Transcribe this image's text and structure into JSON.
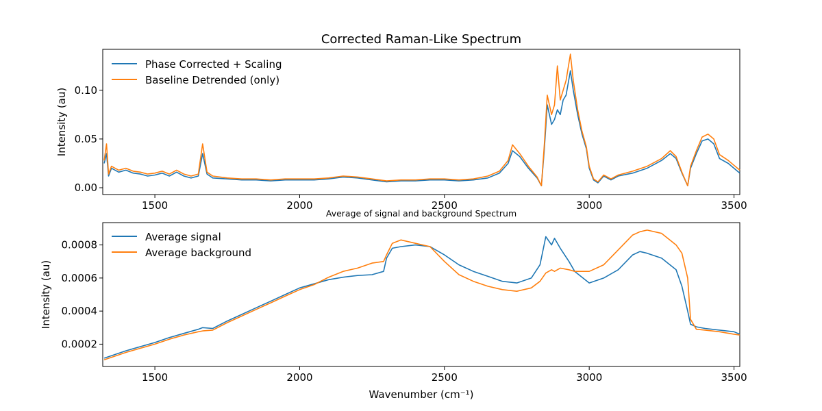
{
  "colors": {
    "series_blue": "#1f77b4",
    "series_orange": "#ff7f0e"
  },
  "chart_data": [
    {
      "type": "line",
      "title": "Corrected Raman-Like Spectrum",
      "xlabel": "",
      "ylabel": "Intensity (au)",
      "xlim": [
        1320,
        3520
      ],
      "ylim": [
        -0.007,
        0.142
      ],
      "xticks": [
        1500,
        2000,
        2500,
        3000,
        3500
      ],
      "yticks": [
        0.0,
        0.05,
        0.1
      ],
      "ytick_labels": [
        "0.00",
        "0.05",
        "0.10"
      ],
      "grid": false,
      "legend": "top-left",
      "series": [
        {
          "name": "Phase Corrected + Scaling",
          "color": "#1f77b4",
          "x": [
            1325,
            1333,
            1340,
            1350,
            1375,
            1400,
            1425,
            1450,
            1475,
            1500,
            1525,
            1550,
            1575,
            1600,
            1625,
            1650,
            1665,
            1680,
            1700,
            1750,
            1800,
            1850,
            1900,
            1950,
            2000,
            2050,
            2100,
            2150,
            2200,
            2250,
            2300,
            2350,
            2400,
            2450,
            2500,
            2550,
            2600,
            2650,
            2690,
            2720,
            2735,
            2760,
            2790,
            2820,
            2835,
            2845,
            2855,
            2870,
            2880,
            2890,
            2900,
            2910,
            2920,
            2935,
            2945,
            2960,
            2975,
            2990,
            3000,
            3015,
            3030,
            3050,
            3075,
            3100,
            3150,
            3200,
            3250,
            3280,
            3300,
            3320,
            3340,
            3350,
            3370,
            3390,
            3410,
            3430,
            3450,
            3480,
            3500,
            3520
          ],
          "y": [
            0.025,
            0.035,
            0.012,
            0.02,
            0.016,
            0.018,
            0.015,
            0.014,
            0.012,
            0.013,
            0.015,
            0.012,
            0.016,
            0.012,
            0.01,
            0.012,
            0.035,
            0.014,
            0.01,
            0.009,
            0.008,
            0.008,
            0.007,
            0.008,
            0.008,
            0.008,
            0.009,
            0.011,
            0.01,
            0.008,
            0.006,
            0.007,
            0.007,
            0.008,
            0.008,
            0.007,
            0.008,
            0.01,
            0.015,
            0.025,
            0.038,
            0.032,
            0.02,
            0.01,
            0.002,
            0.04,
            0.085,
            0.065,
            0.07,
            0.08,
            0.075,
            0.09,
            0.095,
            0.12,
            0.1,
            0.075,
            0.055,
            0.04,
            0.02,
            0.008,
            0.005,
            0.012,
            0.008,
            0.012,
            0.015,
            0.02,
            0.028,
            0.035,
            0.03,
            0.015,
            0.002,
            0.02,
            0.035,
            0.048,
            0.05,
            0.045,
            0.03,
            0.025,
            0.02,
            0.015
          ]
        },
        {
          "name": "Baseline Detrended (only)",
          "color": "#ff7f0e",
          "x": [
            1325,
            1333,
            1340,
            1350,
            1375,
            1400,
            1425,
            1450,
            1475,
            1500,
            1525,
            1550,
            1575,
            1600,
            1625,
            1650,
            1665,
            1680,
            1700,
            1750,
            1800,
            1850,
            1900,
            1950,
            2000,
            2050,
            2100,
            2150,
            2200,
            2250,
            2300,
            2350,
            2400,
            2450,
            2500,
            2550,
            2600,
            2650,
            2690,
            2720,
            2735,
            2760,
            2790,
            2820,
            2835,
            2845,
            2855,
            2870,
            2880,
            2890,
            2900,
            2910,
            2920,
            2935,
            2945,
            2960,
            2975,
            2990,
            3000,
            3015,
            3030,
            3050,
            3075,
            3100,
            3150,
            3200,
            3250,
            3280,
            3300,
            3320,
            3340,
            3350,
            3370,
            3390,
            3410,
            3430,
            3450,
            3480,
            3500,
            3520
          ],
          "y": [
            0.028,
            0.045,
            0.014,
            0.022,
            0.018,
            0.02,
            0.017,
            0.016,
            0.014,
            0.015,
            0.017,
            0.014,
            0.018,
            0.014,
            0.012,
            0.014,
            0.045,
            0.016,
            0.012,
            0.01,
            0.009,
            0.009,
            0.008,
            0.009,
            0.009,
            0.009,
            0.01,
            0.012,
            0.011,
            0.009,
            0.007,
            0.008,
            0.008,
            0.009,
            0.009,
            0.008,
            0.009,
            0.012,
            0.017,
            0.028,
            0.044,
            0.035,
            0.022,
            0.011,
            0.002,
            0.045,
            0.095,
            0.075,
            0.085,
            0.125,
            0.09,
            0.1,
            0.11,
            0.137,
            0.11,
            0.08,
            0.058,
            0.042,
            0.022,
            0.009,
            0.006,
            0.013,
            0.009,
            0.013,
            0.017,
            0.022,
            0.03,
            0.038,
            0.032,
            0.016,
            0.002,
            0.022,
            0.038,
            0.052,
            0.055,
            0.05,
            0.034,
            0.028,
            0.023,
            0.018
          ]
        }
      ]
    },
    {
      "type": "line",
      "title": "Average of signal and background Spectrum",
      "xlabel": "Wavenumber (cm⁻¹)",
      "ylabel": "Intensity (au)",
      "xlim": [
        1320,
        3520
      ],
      "ylim": [
        6.5e-05,
        0.000935
      ],
      "xticks": [
        1500,
        2000,
        2500,
        3000,
        3500
      ],
      "yticks": [
        0.0002,
        0.0004,
        0.0006,
        0.0008
      ],
      "ytick_labels": [
        "0.0002",
        "0.0004",
        "0.0006",
        "0.0008"
      ],
      "grid": false,
      "legend": "top-left",
      "series": [
        {
          "name": "Average signal",
          "color": "#1f77b4",
          "x": [
            1325,
            1400,
            1450,
            1500,
            1550,
            1600,
            1650,
            1665,
            1700,
            1750,
            1800,
            1850,
            1900,
            1950,
            2000,
            2050,
            2100,
            2150,
            2200,
            2250,
            2290,
            2300,
            2320,
            2350,
            2400,
            2450,
            2500,
            2550,
            2600,
            2650,
            2700,
            2750,
            2800,
            2830,
            2850,
            2870,
            2880,
            2900,
            2930,
            2950,
            3000,
            3050,
            3100,
            3150,
            3175,
            3200,
            3250,
            3300,
            3320,
            3340,
            3350,
            3370,
            3400,
            3450,
            3500,
            3520
          ],
          "y": [
            0.000115,
            0.00016,
            0.000185,
            0.00021,
            0.00024,
            0.000265,
            0.00029,
            0.0003,
            0.000295,
            0.00034,
            0.00038,
            0.00042,
            0.00046,
            0.0005,
            0.00054,
            0.000565,
            0.00059,
            0.000605,
            0.000615,
            0.00062,
            0.00064,
            0.00072,
            0.00078,
            0.00079,
            0.0008,
            0.00079,
            0.00074,
            0.00068,
            0.00064,
            0.00061,
            0.00058,
            0.00057,
            0.0006,
            0.00068,
            0.00085,
            0.0008,
            0.00084,
            0.00078,
            0.0007,
            0.00064,
            0.00057,
            0.0006,
            0.00065,
            0.00074,
            0.00076,
            0.00075,
            0.00072,
            0.00065,
            0.00055,
            0.0004,
            0.00032,
            0.000305,
            0.000295,
            0.000285,
            0.000275,
            0.00026
          ]
        },
        {
          "name": "Average background",
          "color": "#ff7f0e",
          "x": [
            1325,
            1400,
            1450,
            1500,
            1550,
            1600,
            1650,
            1665,
            1700,
            1750,
            1800,
            1850,
            1900,
            1950,
            2000,
            2050,
            2100,
            2150,
            2200,
            2250,
            2290,
            2300,
            2320,
            2350,
            2400,
            2450,
            2500,
            2550,
            2600,
            2650,
            2700,
            2750,
            2800,
            2830,
            2850,
            2870,
            2880,
            2900,
            2930,
            2950,
            3000,
            3050,
            3100,
            3150,
            3175,
            3200,
            3250,
            3300,
            3320,
            3340,
            3350,
            3370,
            3400,
            3450,
            3500,
            3520
          ],
          "y": [
            0.000105,
            0.00015,
            0.000175,
            0.0002,
            0.00023,
            0.000255,
            0.000275,
            0.00028,
            0.000285,
            0.00033,
            0.00037,
            0.00041,
            0.00045,
            0.00049,
            0.00053,
            0.00056,
            0.000605,
            0.00064,
            0.00066,
            0.00069,
            0.0007,
            0.00074,
            0.00081,
            0.00083,
            0.00081,
            0.00079,
            0.0007,
            0.00062,
            0.00058,
            0.00055,
            0.00053,
            0.00052,
            0.00054,
            0.00058,
            0.00063,
            0.00065,
            0.00064,
            0.00066,
            0.00065,
            0.00064,
            0.00064,
            0.00068,
            0.00077,
            0.00086,
            0.00088,
            0.00089,
            0.00087,
            0.0008,
            0.00075,
            0.0006,
            0.00035,
            0.00029,
            0.000285,
            0.000275,
            0.00026,
            0.000255
          ]
        }
      ]
    }
  ]
}
